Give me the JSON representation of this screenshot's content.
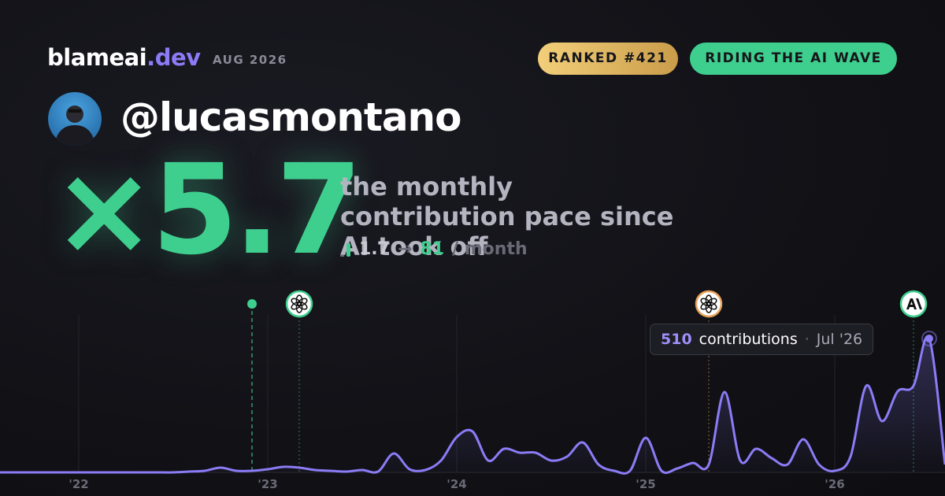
{
  "header": {
    "brand": "blameai",
    "brand_suffix": ".dev",
    "date": "AUG 2026",
    "badges": [
      "RANKED #421",
      "RIDING THE AI WAVE"
    ],
    "handle": "@lucasmontano"
  },
  "hero": {
    "multiplier": "×5.7",
    "description": "the monthly contribution pace since AI took off",
    "from": 1.7,
    "arrow": "→",
    "to": 81,
    "unit": "/ month"
  },
  "chart_data": {
    "type": "line",
    "x": [
      "2021-08",
      "2021-09",
      "2021-10",
      "2021-11",
      "2021-12",
      "2022-01",
      "2022-02",
      "2022-03",
      "2022-04",
      "2022-05",
      "2022-06",
      "2022-07",
      "2022-08",
      "2022-09",
      "2022-10",
      "2022-11",
      "2022-12",
      "2023-01",
      "2023-02",
      "2023-03",
      "2023-04",
      "2023-05",
      "2023-06",
      "2023-07",
      "2023-08",
      "2023-09",
      "2023-10",
      "2023-11",
      "2023-12",
      "2024-01",
      "2024-02",
      "2024-03",
      "2024-04",
      "2024-05",
      "2024-06",
      "2024-07",
      "2024-08",
      "2024-09",
      "2024-10",
      "2024-11",
      "2024-12",
      "2025-01",
      "2025-02",
      "2025-03",
      "2025-04",
      "2025-05",
      "2025-06",
      "2025-07",
      "2025-08",
      "2025-09",
      "2025-10",
      "2025-11",
      "2025-12",
      "2026-01",
      "2026-02",
      "2026-03",
      "2026-04",
      "2026-05",
      "2026-06",
      "2026-07",
      "2026-08"
    ],
    "series": [
      {
        "name": "contributions",
        "color": "#8b7cf6",
        "values": [
          0,
          0,
          0,
          0,
          0,
          0,
          0,
          0,
          0,
          0,
          0,
          0,
          3,
          6,
          18,
          6,
          6,
          12,
          21,
          18,
          9,
          6,
          3,
          9,
          3,
          72,
          12,
          9,
          45,
          135,
          156,
          45,
          90,
          75,
          75,
          45,
          60,
          114,
          30,
          6,
          6,
          132,
          6,
          15,
          36,
          30,
          306,
          45,
          90,
          54,
          30,
          126,
          30,
          6,
          60,
          330,
          195,
          309,
          330,
          510,
          30
        ]
      }
    ],
    "xlim": [
      "2021-08",
      "2026-08"
    ],
    "xticks": [
      {
        "value": "2022-01",
        "label": "'22"
      },
      {
        "value": "2023-01",
        "label": "'23"
      },
      {
        "value": "2024-01",
        "label": "'24"
      },
      {
        "value": "2025-01",
        "label": "'25"
      },
      {
        "value": "2026-01",
        "label": "'26"
      }
    ],
    "ylim": [
      0,
      510
    ],
    "grid": true,
    "events": [
      {
        "x": "2022-12",
        "kind": "dot",
        "color": "#3ecf8e"
      },
      {
        "x": "2023-03",
        "kind": "openai",
        "color": "#3ecf8e"
      },
      {
        "x": "2025-05",
        "kind": "openai",
        "color": "#e8a15a"
      },
      {
        "x": "2026-06",
        "kind": "anthropic",
        "color": "#3ecf8e"
      }
    ],
    "tooltip": {
      "label": "contributions",
      "date": "Jul '26"
    }
  }
}
